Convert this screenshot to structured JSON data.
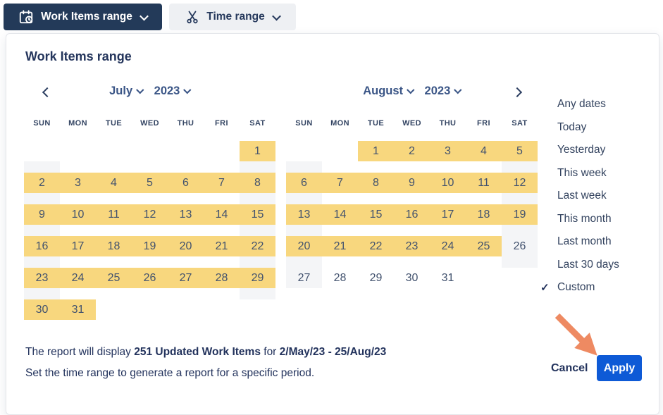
{
  "toolbar": {
    "work_items_button": {
      "label": "Work Items range"
    },
    "time_range_button": {
      "label": "Time range"
    }
  },
  "panel": {
    "title": "Work Items range",
    "calendar": {
      "weekday_headers": [
        "SUN",
        "MON",
        "TUE",
        "WED",
        "THU",
        "FRI",
        "SAT"
      ],
      "months": [
        {
          "month_label": "July",
          "year_label": "2023",
          "weeks": [
            [
              null,
              null,
              null,
              null,
              null,
              null,
              {
                "d": 1,
                "s": 1
              }
            ],
            [
              {
                "d": 2,
                "s": 1
              },
              {
                "d": 3,
                "s": 1
              },
              {
                "d": 4,
                "s": 1
              },
              {
                "d": 5,
                "s": 1
              },
              {
                "d": 6,
                "s": 1
              },
              {
                "d": 7,
                "s": 1
              },
              {
                "d": 8,
                "s": 1
              }
            ],
            [
              {
                "d": 9,
                "s": 1
              },
              {
                "d": 10,
                "s": 1
              },
              {
                "d": 11,
                "s": 1
              },
              {
                "d": 12,
                "s": 1
              },
              {
                "d": 13,
                "s": 1
              },
              {
                "d": 14,
                "s": 1
              },
              {
                "d": 15,
                "s": 1
              }
            ],
            [
              {
                "d": 16,
                "s": 1
              },
              {
                "d": 17,
                "s": 1
              },
              {
                "d": 18,
                "s": 1
              },
              {
                "d": 19,
                "s": 1
              },
              {
                "d": 20,
                "s": 1
              },
              {
                "d": 21,
                "s": 1
              },
              {
                "d": 22,
                "s": 1
              }
            ],
            [
              {
                "d": 23,
                "s": 1
              },
              {
                "d": 24,
                "s": 1
              },
              {
                "d": 25,
                "s": 1
              },
              {
                "d": 26,
                "s": 1
              },
              {
                "d": 27,
                "s": 1
              },
              {
                "d": 28,
                "s": 1
              },
              {
                "d": 29,
                "s": 1
              }
            ],
            [
              {
                "d": 30,
                "s": 1
              },
              {
                "d": 31,
                "s": 1
              },
              null,
              null,
              null,
              null,
              null
            ]
          ]
        },
        {
          "month_label": "August",
          "year_label": "2023",
          "weeks": [
            [
              null,
              null,
              {
                "d": 1,
                "s": 1
              },
              {
                "d": 2,
                "s": 1
              },
              {
                "d": 3,
                "s": 1
              },
              {
                "d": 4,
                "s": 1
              },
              {
                "d": 5,
                "s": 1
              }
            ],
            [
              {
                "d": 6,
                "s": 1
              },
              {
                "d": 7,
                "s": 1
              },
              {
                "d": 8,
                "s": 1
              },
              {
                "d": 9,
                "s": 1
              },
              {
                "d": 10,
                "s": 1
              },
              {
                "d": 11,
                "s": 1
              },
              {
                "d": 12,
                "s": 1
              }
            ],
            [
              {
                "d": 13,
                "s": 1
              },
              {
                "d": 14,
                "s": 1
              },
              {
                "d": 15,
                "s": 1
              },
              {
                "d": 16,
                "s": 1
              },
              {
                "d": 17,
                "s": 1
              },
              {
                "d": 18,
                "s": 1
              },
              {
                "d": 19,
                "s": 1
              }
            ],
            [
              {
                "d": 20,
                "s": 1
              },
              {
                "d": 21,
                "s": 1
              },
              {
                "d": 22,
                "s": 1
              },
              {
                "d": 23,
                "s": 1
              },
              {
                "d": 24,
                "s": 1
              },
              {
                "d": 25,
                "s": 1
              },
              {
                "d": 26,
                "s": 0
              }
            ],
            [
              {
                "d": 27,
                "s": 0
              },
              {
                "d": 28,
                "s": 0
              },
              {
                "d": 29,
                "s": 0
              },
              {
                "d": 30,
                "s": 0
              },
              {
                "d": 31,
                "s": 0
              },
              null,
              null
            ]
          ]
        }
      ]
    },
    "presets": [
      {
        "label": "Any dates",
        "checked": false
      },
      {
        "label": "Today",
        "checked": false
      },
      {
        "label": "Yesterday",
        "checked": false
      },
      {
        "label": "This week",
        "checked": false
      },
      {
        "label": "Last week",
        "checked": false
      },
      {
        "label": "This month",
        "checked": false
      },
      {
        "label": "Last month",
        "checked": false
      },
      {
        "label": "Last 30 days",
        "checked": false
      },
      {
        "label": "Custom",
        "checked": true
      }
    ],
    "summary": {
      "prefix": "The report will display ",
      "count_bold": "251 Updated Work Items",
      "middle": " for ",
      "range_bold": "2/May/23 - 25/Aug/23",
      "line2": "Set the time range to generate a report for a specific period."
    },
    "actions": {
      "cancel_label": "Cancel",
      "apply_label": "Apply"
    },
    "check_glyph": "✓"
  },
  "colors": {
    "primary_navy": "#233a59",
    "selected_yellow": "#f8d77e",
    "weekend_gray": "#f4f5f7",
    "apply_blue": "#0e5ad6",
    "arrow_orange": "#ee8a62",
    "text_navy": "#22325c",
    "date_text": "#42526e"
  }
}
